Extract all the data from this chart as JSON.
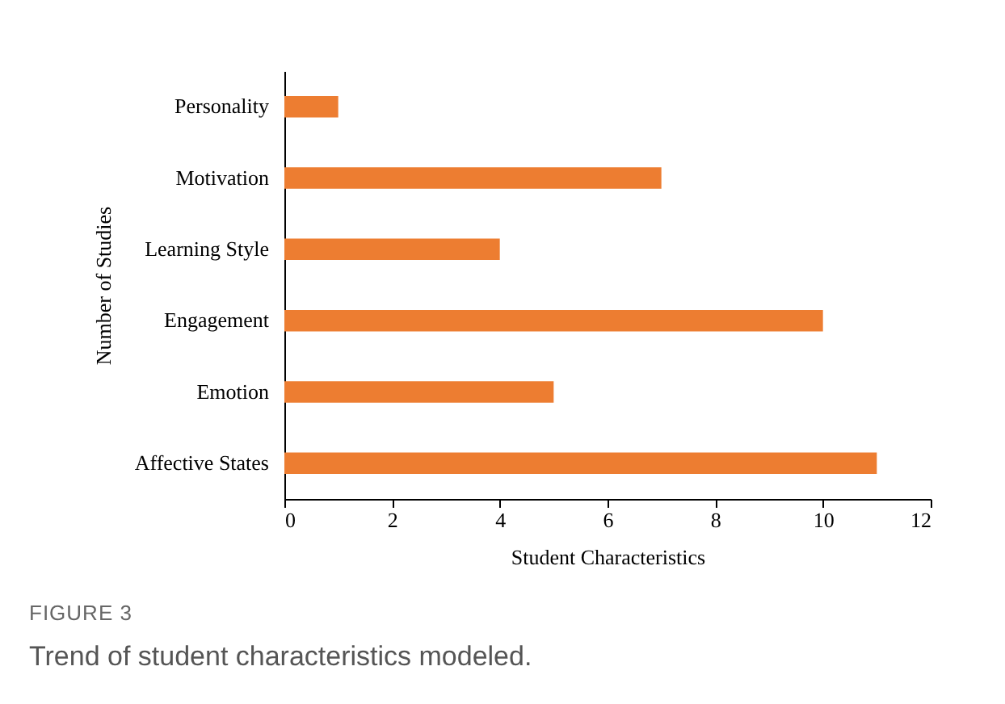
{
  "chart_data": {
    "type": "bar",
    "orientation": "horizontal",
    "xlabel": "Student Characteristics",
    "ylabel": "Number of Studies",
    "categories": [
      "Personality",
      "Motivation",
      "Learning Style",
      "Engagement",
      "Emotion",
      "Affective States"
    ],
    "values": [
      1,
      7,
      4,
      10,
      5,
      11
    ],
    "color": "#ed7d31",
    "xlim": [
      0,
      12
    ],
    "xticks": [
      0,
      2,
      4,
      6,
      8,
      10,
      12
    ],
    "grid": false,
    "annotations": [
      "FIGURE 3",
      "Trend of student characteristics modeled."
    ]
  }
}
